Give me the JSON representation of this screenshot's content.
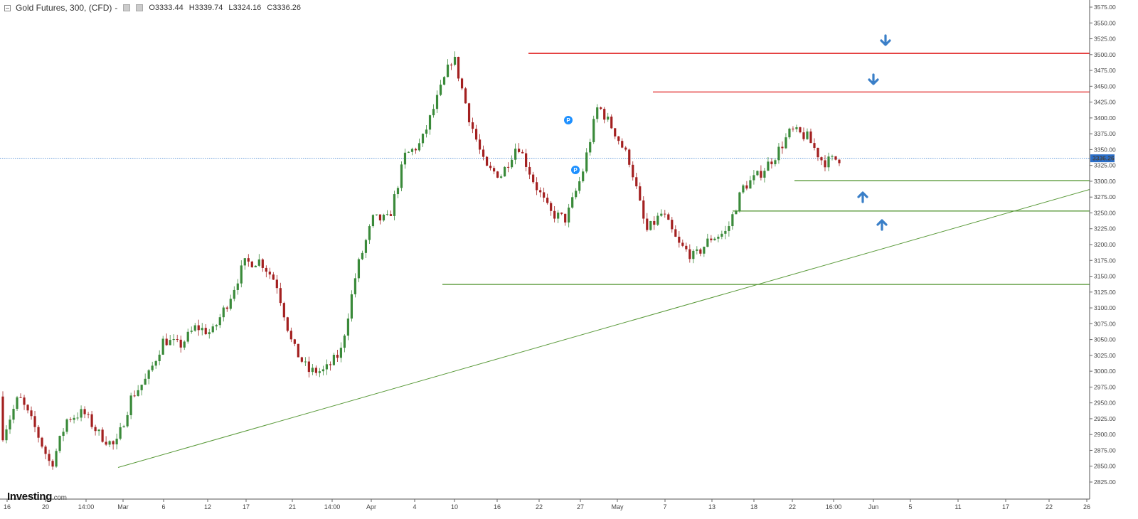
{
  "header": {
    "title": "Gold Futures, 300, (CFD)",
    "dash": "-",
    "open": "O3333.44",
    "high": "H3339.74",
    "low": "L3324.16",
    "close": "C3336.26"
  },
  "logo": {
    "main": "Investing",
    "suffix": ".com"
  },
  "price_badge": "3336.26",
  "chart_data": {
    "type": "candlestick",
    "y_ticks": [
      3575,
      3550,
      3525,
      3500,
      3475,
      3450,
      3425,
      3400,
      3375,
      3350,
      3325,
      3300,
      3275,
      3250,
      3225,
      3200,
      3175,
      3150,
      3125,
      3100,
      3075,
      3050,
      3025,
      3000,
      2975,
      2950,
      2925,
      2900,
      2875,
      2850,
      2825
    ],
    "y_tick_labels": [
      "3575.00",
      "3550.00",
      "3525.00",
      "3500.00",
      "3475.00",
      "3450.00",
      "3425.00",
      "3400.00",
      "3375.00",
      "3350.00",
      "3325.00",
      "3300.00",
      "3275.00",
      "3250.00",
      "3225.00",
      "3200.00",
      "3175.00",
      "3150.00",
      "3125.00",
      "3100.00",
      "3075.00",
      "3050.00",
      "3025.00",
      "3000.00",
      "2975.00",
      "2950.00",
      "2925.00",
      "2900.00",
      "2875.00",
      "2850.00",
      "2825.00"
    ],
    "x_tick_labels": [
      "16",
      "20",
      "14:00",
      "Mar",
      "6",
      "12",
      "17",
      "21",
      "14:00",
      "Apr",
      "4",
      "10",
      "16",
      "22",
      "27",
      "May",
      "7",
      "13",
      "18",
      "22",
      "16:00",
      "Jun",
      "5",
      "11",
      "17",
      "22",
      "26"
    ],
    "current_price": 3336.26,
    "resistance_levels": [
      3502,
      3441
    ],
    "support_levels": [
      3301,
      3253,
      3137
    ],
    "trendline": {
      "start": {
        "x": "Mar",
        "y": 2848
      },
      "end": {
        "x": "26",
        "y": 3287
      }
    },
    "price_path": [
      [
        2955,
        2900
      ],
      [
        2975,
        2960
      ],
      [
        2975,
        2910
      ],
      [
        2945,
        2850
      ],
      [
        2935,
        2925
      ],
      [
        2930,
        2935
      ],
      [
        2925,
        2900
      ],
      [
        2945,
        2880
      ],
      [
        3000,
        2960
      ],
      [
        3010,
        2990
      ],
      [
        3040,
        3050
      ],
      [
        3060,
        3040
      ],
      [
        3050,
        3070
      ],
      [
        3060,
        3060
      ],
      [
        3080,
        3110
      ],
      [
        3140,
        3170
      ],
      [
        3150,
        3175
      ],
      [
        3195,
        3140
      ],
      [
        3120,
        3040
      ],
      [
        3060,
        3000
      ],
      [
        2985,
        3000
      ],
      [
        3020,
        3030
      ],
      [
        3130,
        3160
      ],
      [
        3220,
        3240
      ],
      [
        3230,
        3240
      ],
      [
        3280,
        3340
      ],
      [
        3370,
        3360
      ],
      [
        3390,
        3430
      ],
      [
        3480,
        3500
      ],
      [
        3440,
        3400
      ],
      [
        3350,
        3320
      ],
      [
        3300,
        3310
      ],
      [
        3330,
        3360
      ],
      [
        3350,
        3300
      ],
      [
        3280,
        3250
      ],
      [
        3230,
        3240
      ],
      [
        3260,
        3310
      ],
      [
        3380,
        3420
      ],
      [
        3400,
        3380
      ],
      [
        3370,
        3330
      ],
      [
        3300,
        3220
      ],
      [
        3260,
        3250
      ],
      [
        3240,
        3200
      ],
      [
        3150,
        3180
      ],
      [
        3250,
        3210
      ],
      [
        3230,
        3220
      ],
      [
        3240,
        3290
      ],
      [
        3300,
        3310
      ],
      [
        3300,
        3340
      ],
      [
        3370,
        3380
      ],
      [
        3375,
        3370
      ],
      [
        3350,
        3330
      ],
      [
        3325,
        3336
      ]
    ],
    "pins": [
      {
        "label": "P"
      },
      {
        "label": "P"
      }
    ]
  },
  "colors": {
    "up": "#3a8a3a",
    "down": "#a32020",
    "resistance": "#e02020",
    "support": "#5a9a3a",
    "trendline": "#5a9a3a",
    "arrow": "#3a7fc8",
    "price_line": "#3a7fd0",
    "badge": "#2c6fc9",
    "pin": "#1e90ff"
  },
  "arrows": [
    {
      "dir": "down"
    },
    {
      "dir": "down"
    },
    {
      "dir": "up"
    },
    {
      "dir": "up"
    }
  ]
}
